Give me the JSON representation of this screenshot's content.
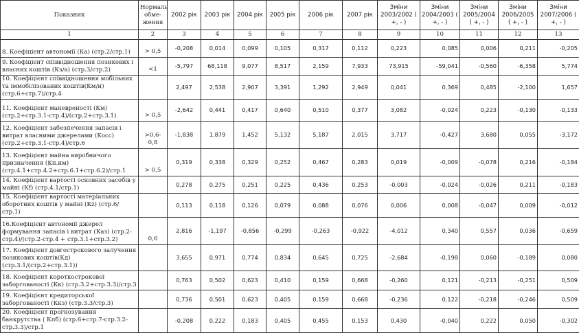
{
  "headers": [
    "Показник",
    "Нормальні обме-ження",
    "2002 рік",
    "2003 рік",
    "2004 рік",
    "2005 рік",
    "2006 рік",
    "2007 рік",
    "Зміни 2003/2002 ( +, - )",
    "Зміни 2004/2003 ( +, - )",
    "Зміни 2005/2004 ( +, - )",
    "Зміни 2006/2005 ( +, - )",
    "Зміни 2007/2006 ( +, - )"
  ],
  "column_numbers": [
    "1",
    "2",
    "3",
    "4",
    "5",
    "6",
    "7",
    "8",
    "9",
    "10",
    "11",
    "12",
    "13"
  ],
  "rows": [
    {
      "label": "8. Коефіцієнт автономії (Ка) (стр.2/стр.1)",
      "norm": "> 0,5",
      "values": [
        "-0,208",
        "0,014",
        "0,099",
        "0,105",
        "0,317",
        "0,112",
        "0,223",
        "0,085",
        "0,006",
        "0,211",
        "-0,205"
      ]
    },
    {
      "label": "9. Коефіцієнт співвідношення позикових і власних коштів (Кз/а) (стр.3/стр.2)",
      "norm": "<1",
      "values": [
        "-5,797",
        "68,118",
        "9,077",
        "8,517",
        "2,159",
        "7,933",
        "73,915",
        "-59,041",
        "-0,560",
        "-6,358",
        "5,774"
      ]
    },
    {
      "label": "10. Коефіцієнт співвідношення мобільних та іммобілізованих коштів(Км/и) (стр.6+стр.7)/стр.4",
      "norm": "",
      "values": [
        "2,497",
        "2,538",
        "2,907",
        "3,391",
        "1,292",
        "2,949",
        "0,041",
        "0,369",
        "0,485",
        "-2,100",
        "1,657"
      ]
    },
    {
      "label": "11. Коефіцієнт маневреності (Км) (стр.2+стр.3.1-стр.4)/(стр.2+стр.3.1)",
      "norm": "> 0,5",
      "values": [
        "-2,642",
        "0,441",
        "0,417",
        "0,640",
        "0,510",
        "0,377",
        "3,082",
        "-0,024",
        "0,223",
        "-0,130",
        "-0,133"
      ]
    },
    {
      "label": "12. Коефіцієнт забезпечення запасів і витрат власними джерелами (Косс) (стр.2+стр.3.1-стр.4)/стр.6",
      "norm": ">0,6-0,8",
      "values": [
        "-1,838",
        "1,879",
        "1,452",
        "5,132",
        "5,187",
        "2,015",
        "3,717",
        "-0,427",
        "3,680",
        "0,055",
        "-3,172"
      ]
    },
    {
      "label": "13. Коефіцієнт майна виробничого призначення  (Кп.им) (стр.4.1+стр.4.2+стр.6.1+стр.6.2)/стр.1",
      "norm": "> 0,5",
      "values": [
        "0,319",
        "0,338",
        "0,329",
        "0,252",
        "0,467",
        "0,283",
        "0,019",
        "-0,009",
        "-0,078",
        "0,216",
        "-0,184"
      ]
    },
    {
      "label": "14. Коефіцієнт вартості основних засобів у майні (Кf)  (стр.4.1/стр.1)",
      "norm": "",
      "values": [
        "0,278",
        "0,275",
        "0,251",
        "0,225",
        "0,436",
        "0,253",
        "-0,003",
        "-0,024",
        "-0,026",
        "0,211",
        "-0,183"
      ]
    },
    {
      "label": "15. Коефіцієнт вартості матеріальних оборотних коштів у майні (Кz)  (стр.6/стр.1)",
      "norm": "",
      "values": [
        "0,113",
        "0,118",
        "0,126",
        "0,079",
        "0,088",
        "0,076",
        "0,006",
        "0,008",
        "-0,047",
        "0,009",
        "-0,012"
      ]
    },
    {
      "label": "16.Коефіцієнт автономії джерел формування запасів і витрат (Каз) (стр.2-стр.4)/(стр.2-стр.4 + стр.3.1+стр.3.2)",
      "norm": "0,6",
      "values": [
        "2,816",
        "-1,197",
        "-0,856",
        "-0,299",
        "-0,263",
        "-0,922",
        "-4,012",
        "0,340",
        "0,557",
        "0,036",
        "-0,659"
      ]
    },
    {
      "label": "17.  Коефіцієнт довгострокового залучення позикових коштів(Кд) (стр.3.1/(стр.2+стр.3.1))",
      "norm": "",
      "values": [
        "3,655",
        "0,971",
        "0,774",
        "0,834",
        "0,645",
        "0,725",
        "-2,684",
        "-0,198",
        "0,060",
        "-0,189",
        "0,080"
      ]
    },
    {
      "label": "18. Коефіцієнт короткострокової заборгованості (Кк) (стр.3.2+стр.3.3)/стр.3",
      "norm": "",
      "values": [
        "0,763",
        "0,502",
        "0,623",
        "0,410",
        "0,159",
        "0,668",
        "-0,260",
        "0,121",
        "-0,213",
        "-0,251",
        "0,509"
      ]
    },
    {
      "label": "19. Коефіцієнт кредиторської заборгованості (Ккз) (стр.3.3/стр.3)",
      "norm": "",
      "values": [
        "0,736",
        "0,501",
        "0,623",
        "0,405",
        "0,159",
        "0,668",
        "-0,236",
        "0,122",
        "-0,218",
        "-0,246",
        "0,509"
      ]
    },
    {
      "label": "20. Коефіцієнт прогнозування банкрутства ( Кпб) (стр.6+стр.7-стр.3.2-стр.3.3)/стр.1",
      "norm": "",
      "values": [
        "-0,208",
        "0,222",
        "0,183",
        "0,405",
        "0,455",
        "0,153",
        "0,430",
        "-0,040",
        "0,222",
        "0,050",
        "-0,302"
      ]
    }
  ]
}
